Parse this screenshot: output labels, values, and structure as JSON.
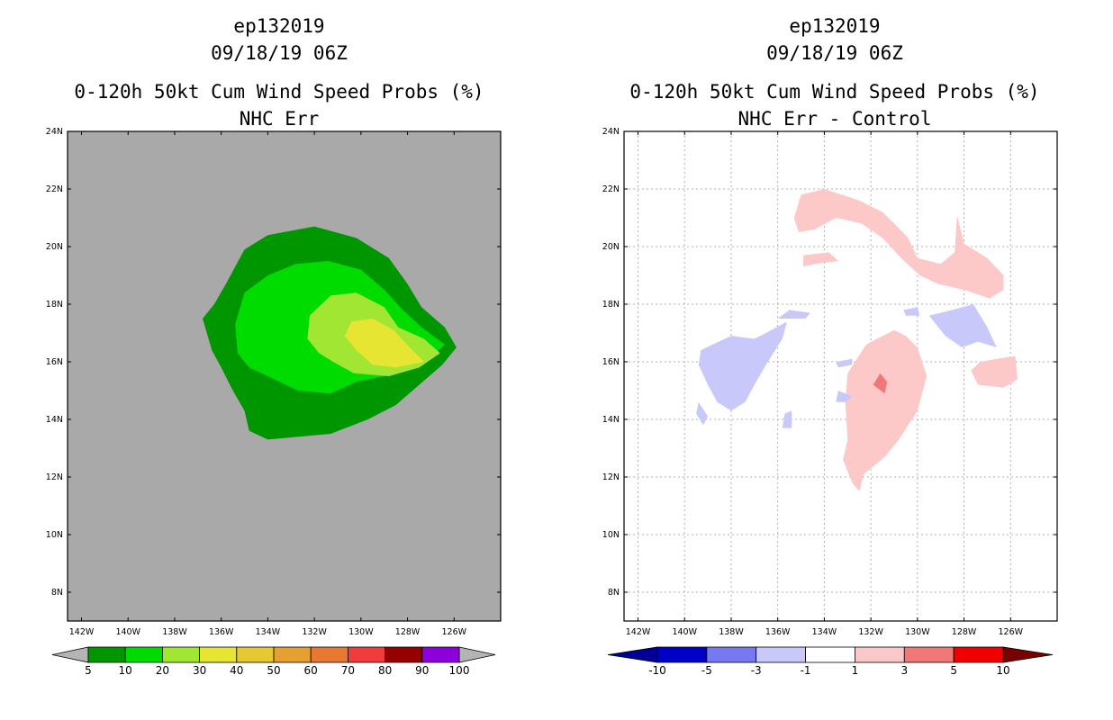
{
  "left": {
    "title_line1": "ep132019",
    "title_line2": "09/18/19 06Z",
    "title_line3": "0-120h 50kt Cum Wind Speed Probs (%)",
    "title_line4": "NHC Err"
  },
  "right": {
    "title_line1": "ep132019",
    "title_line2": "09/18/19 06Z",
    "title_line3": "0-120h 50kt Cum Wind Speed Probs (%)",
    "title_line4": "NHC Err - Control"
  },
  "chart_data": [
    {
      "type": "heatmap",
      "title": "0-120h 50kt Cum Wind Speed Probs (%) NHC Err",
      "subtitle": "ep132019 09/18/19 06Z",
      "xlim": [
        -142.6,
        -124.0
      ],
      "ylim": [
        7.0,
        24.0
      ],
      "x_ticks": [
        -142,
        -140,
        -138,
        -136,
        -134,
        -132,
        -130,
        -128,
        -126
      ],
      "x_tick_labels": [
        "142W",
        "140W",
        "138W",
        "136W",
        "134W",
        "132W",
        "130W",
        "128W",
        "126W"
      ],
      "y_ticks": [
        8,
        10,
        12,
        14,
        16,
        18,
        20,
        22,
        24
      ],
      "y_tick_labels": [
        "8N",
        "10N",
        "12N",
        "14N",
        "16N",
        "18N",
        "20N",
        "22N",
        "24N"
      ],
      "background_color": "#a9a9a9",
      "grid": false,
      "colorbar": {
        "labels": [
          "5",
          "10",
          "20",
          "30",
          "40",
          "50",
          "60",
          "70",
          "80",
          "90",
          "100"
        ],
        "colors": [
          "#009600",
          "#00dc00",
          "#a0e632",
          "#e6e632",
          "#e6c832",
          "#e6a032",
          "#e67832",
          "#f03c3c",
          "#960000",
          "#8c00dc"
        ],
        "end_color": "#b4b4b4"
      },
      "contours": [
        {
          "level": 5,
          "color": "#009600",
          "points": [
            [
              -134.0,
              13.3
            ],
            [
              -131.3,
              13.5
            ],
            [
              -129.7,
              14.0
            ],
            [
              -128.5,
              14.5
            ],
            [
              -127.5,
              15.2
            ],
            [
              -126.5,
              15.9
            ],
            [
              -125.9,
              16.5
            ],
            [
              -126.4,
              17.2
            ],
            [
              -127.4,
              17.9
            ],
            [
              -128.0,
              18.7
            ],
            [
              -128.8,
              19.6
            ],
            [
              -130.2,
              20.3
            ],
            [
              -132.0,
              20.7
            ],
            [
              -134.0,
              20.4
            ],
            [
              -135.0,
              19.9
            ],
            [
              -135.8,
              18.7
            ],
            [
              -136.3,
              18.0
            ],
            [
              -136.8,
              17.5
            ],
            [
              -136.4,
              16.4
            ],
            [
              -136.0,
              15.8
            ],
            [
              -135.5,
              15.0
            ],
            [
              -135.0,
              14.3
            ],
            [
              -134.8,
              13.6
            ]
          ]
        },
        {
          "level": 10,
          "color": "#00dc00",
          "points": [
            [
              -134.0,
              15.5
            ],
            [
              -132.7,
              15.0
            ],
            [
              -131.3,
              14.9
            ],
            [
              -130.2,
              15.3
            ],
            [
              -129.0,
              15.5
            ],
            [
              -128.0,
              15.8
            ],
            [
              -126.8,
              16.3
            ],
            [
              -126.4,
              16.6
            ],
            [
              -127.4,
              17.2
            ],
            [
              -128.2,
              17.8
            ],
            [
              -129.0,
              18.5
            ],
            [
              -130.0,
              19.2
            ],
            [
              -131.4,
              19.5
            ],
            [
              -132.8,
              19.4
            ],
            [
              -134.0,
              19.0
            ],
            [
              -135.0,
              18.4
            ],
            [
              -135.4,
              17.3
            ],
            [
              -135.3,
              16.3
            ],
            [
              -134.8,
              15.8
            ]
          ]
        },
        {
          "level": 20,
          "color": "#a0e632",
          "points": [
            [
              -131.2,
              16.0
            ],
            [
              -130.3,
              15.6
            ],
            [
              -128.8,
              15.5
            ],
            [
              -127.5,
              15.8
            ],
            [
              -126.6,
              16.3
            ],
            [
              -127.3,
              16.8
            ],
            [
              -128.4,
              17.2
            ],
            [
              -129.0,
              17.9
            ],
            [
              -130.2,
              18.4
            ],
            [
              -131.3,
              18.3
            ],
            [
              -132.2,
              17.6
            ],
            [
              -132.3,
              16.8
            ],
            [
              -131.8,
              16.3
            ]
          ]
        },
        {
          "level": 30,
          "color": "#e6e632",
          "points": [
            [
              -129.5,
              15.9
            ],
            [
              -128.5,
              15.8
            ],
            [
              -127.3,
              16.0
            ],
            [
              -127.9,
              16.5
            ],
            [
              -128.6,
              17.1
            ],
            [
              -129.5,
              17.5
            ],
            [
              -130.4,
              17.4
            ],
            [
              -130.7,
              16.9
            ],
            [
              -130.2,
              16.4
            ]
          ]
        }
      ]
    },
    {
      "type": "heatmap",
      "title": "0-120h 50kt Cum Wind Speed Probs (%) NHC Err - Control",
      "subtitle": "ep132019 09/18/19 06Z",
      "xlim": [
        -142.6,
        -124.0
      ],
      "ylim": [
        7.0,
        24.0
      ],
      "x_ticks": [
        -142,
        -140,
        -138,
        -136,
        -134,
        -132,
        -130,
        -128,
        -126
      ],
      "x_tick_labels": [
        "142W",
        "140W",
        "138W",
        "136W",
        "134W",
        "132W",
        "130W",
        "128W",
        "126W"
      ],
      "y_ticks": [
        8,
        10,
        12,
        14,
        16,
        18,
        20,
        22,
        24
      ],
      "y_tick_labels": [
        "8N",
        "10N",
        "12N",
        "14N",
        "16N",
        "18N",
        "20N",
        "22N",
        "24N"
      ],
      "background_color": "#ffffff",
      "grid": true,
      "colorbar": {
        "labels": [
          "-10",
          "-5",
          "-3",
          "-1",
          "1",
          "3",
          "5",
          "10"
        ],
        "colors": [
          "#0000c8",
          "#7878f0",
          "#c8c8fa",
          "#ffffff",
          "#fac8c8",
          "#f07878",
          "#f00000"
        ],
        "end_left_color": "#000096",
        "end_right_color": "#780000"
      },
      "contours": [
        {
          "level": 1,
          "color": "#fcc8c8",
          "points": [
            [
              -135.0,
              21.8
            ],
            [
              -134.0,
              22.0
            ],
            [
              -132.5,
              21.6
            ],
            [
              -131.5,
              21.2
            ],
            [
              -131.0,
              20.8
            ],
            [
              -130.4,
              20.3
            ],
            [
              -130.0,
              19.6
            ],
            [
              -129.0,
              19.4
            ],
            [
              -128.4,
              19.8
            ],
            [
              -128.3,
              21.1
            ],
            [
              -128.0,
              20.1
            ],
            [
              -127.0,
              19.6
            ],
            [
              -126.3,
              19.0
            ],
            [
              -126.3,
              18.5
            ],
            [
              -126.9,
              18.2
            ],
            [
              -128.0,
              18.5
            ],
            [
              -129.1,
              18.7
            ],
            [
              -129.9,
              19.0
            ],
            [
              -130.7,
              19.6
            ],
            [
              -131.5,
              20.3
            ],
            [
              -132.4,
              20.8
            ],
            [
              -133.5,
              21.0
            ],
            [
              -134.4,
              20.6
            ],
            [
              -135.1,
              20.5
            ],
            [
              -135.3,
              21.0
            ]
          ]
        },
        {
          "level": 1,
          "color": "#fcc8c8",
          "points": [
            [
              -134.9,
              19.7
            ],
            [
              -133.8,
              19.8
            ],
            [
              -133.4,
              19.5
            ],
            [
              -134.4,
              19.4
            ],
            [
              -134.9,
              19.3
            ]
          ]
        },
        {
          "level": 1,
          "color": "#fcc8c8",
          "points": [
            [
              -132.3,
              12.1
            ],
            [
              -131.4,
              12.7
            ],
            [
              -130.8,
              13.3
            ],
            [
              -130.0,
              14.3
            ],
            [
              -129.6,
              15.5
            ],
            [
              -130.0,
              16.5
            ],
            [
              -130.5,
              16.9
            ],
            [
              -131.0,
              17.1
            ],
            [
              -131.5,
              16.9
            ],
            [
              -132.2,
              16.6
            ],
            [
              -132.6,
              16.1
            ],
            [
              -133.0,
              15.6
            ],
            [
              -133.1,
              14.6
            ],
            [
              -133.0,
              13.3
            ],
            [
              -133.2,
              12.6
            ],
            [
              -132.8,
              11.8
            ],
            [
              -132.5,
              11.5
            ]
          ]
        },
        {
          "level": 1,
          "color": "#fcc8c8",
          "points": [
            [
              -127.4,
              15.2
            ],
            [
              -126.3,
              15.1
            ],
            [
              -125.7,
              15.4
            ],
            [
              -125.8,
              16.2
            ],
            [
              -126.6,
              16.1
            ],
            [
              -127.3,
              16.0
            ],
            [
              -127.7,
              15.7
            ]
          ]
        },
        {
          "level": 3,
          "color": "#f07878",
          "points": [
            [
              -131.6,
              15.6
            ],
            [
              -131.3,
              15.3
            ],
            [
              -131.4,
              14.9
            ],
            [
              -131.9,
              15.2
            ]
          ]
        },
        {
          "level": -1,
          "color": "#c8c8fa",
          "points": [
            [
              -138.8,
              16.6
            ],
            [
              -138.0,
              16.9
            ],
            [
              -137.0,
              16.8
            ],
            [
              -136.5,
              17.0
            ],
            [
              -135.6,
              17.4
            ],
            [
              -135.8,
              16.8
            ],
            [
              -136.5,
              15.9
            ],
            [
              -137.0,
              15.2
            ],
            [
              -137.4,
              14.6
            ],
            [
              -138.0,
              14.3
            ],
            [
              -138.6,
              14.6
            ],
            [
              -139.0,
              15.2
            ],
            [
              -139.4,
              15.9
            ],
            [
              -139.3,
              16.4
            ]
          ]
        },
        {
          "level": -1,
          "color": "#c8c8fa",
          "points": [
            [
              -129.5,
              17.6
            ],
            [
              -128.5,
              17.8
            ],
            [
              -127.6,
              18.0
            ],
            [
              -127.0,
              17.2
            ],
            [
              -126.6,
              16.5
            ],
            [
              -127.4,
              16.7
            ],
            [
              -128.1,
              16.5
            ],
            [
              -128.8,
              16.9
            ]
          ]
        },
        {
          "level": -1,
          "color": "#c8c8fa",
          "points": [
            [
              -136.0,
              17.5
            ],
            [
              -134.8,
              17.5
            ],
            [
              -134.6,
              17.7
            ],
            [
              -135.5,
              17.8
            ]
          ]
        },
        {
          "level": -1,
          "color": "#c8c8fa",
          "points": [
            [
              -133.4,
              15.0
            ],
            [
              -132.8,
              14.8
            ],
            [
              -133.1,
              14.6
            ],
            [
              -133.5,
              14.6
            ]
          ]
        },
        {
          "level": -1,
          "color": "#c8c8fa",
          "points": [
            [
              -130.6,
              17.8
            ],
            [
              -130.0,
              17.9
            ],
            [
              -129.9,
              17.6
            ],
            [
              -130.5,
              17.6
            ]
          ]
        },
        {
          "level": -1,
          "color": "#c8c8fa",
          "points": [
            [
              -139.4,
              14.6
            ],
            [
              -139.0,
              14.1
            ],
            [
              -139.2,
              13.8
            ],
            [
              -139.5,
              14.2
            ]
          ]
        },
        {
          "level": -1,
          "color": "#c8c8fa",
          "points": [
            [
              -135.7,
              14.2
            ],
            [
              -135.4,
              14.3
            ],
            [
              -135.4,
              13.7
            ],
            [
              -135.8,
              13.7
            ]
          ]
        },
        {
          "level": -1,
          "color": "#c8c8fa",
          "points": [
            [
              -133.5,
              16.0
            ],
            [
              -132.8,
              16.1
            ],
            [
              -132.8,
              15.9
            ],
            [
              -133.4,
              15.8
            ]
          ]
        }
      ]
    }
  ]
}
